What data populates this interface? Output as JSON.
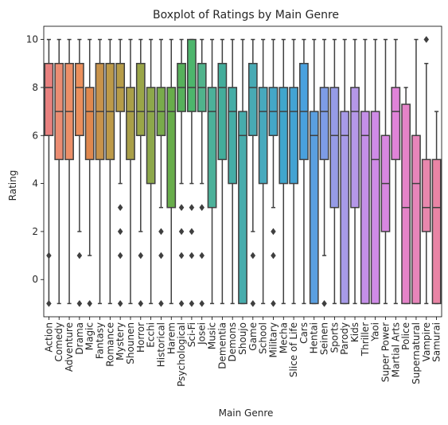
{
  "chart_data": {
    "type": "boxplot",
    "title": "Boxplot of Ratings by Main Genre",
    "xlabel": "Main Genre",
    "ylabel": "Rating",
    "ylim": [
      -1.55,
      10.55
    ],
    "yticks": [
      0,
      2,
      4,
      6,
      8,
      10
    ],
    "grid": false,
    "legend": "none",
    "categories": [
      "Action",
      "Comedy",
      "Adventure",
      "Drama",
      "Magic",
      "Fantasy",
      "Romance",
      "Mystery",
      "Shounen",
      "Horror",
      "Ecchi",
      "Historical",
      "Harem",
      "Psychological",
      "Sci-Fi",
      "Josei",
      "Music",
      "Dementia",
      "Demons",
      "Shoujo",
      "Game",
      "School",
      "Military",
      "Mecha",
      "Slice of Life",
      "Cars",
      "Hentai",
      "Seinen",
      "Sports",
      "Parody",
      "Kids",
      "Thriller",
      "Yaoi",
      "Super Power",
      "Martial Arts",
      "Police",
      "Supernatural",
      "Vampire",
      "Samurai"
    ],
    "colors": [
      "#e8817f",
      "#eb8d73",
      "#ec8f68",
      "#eb8f5c",
      "#e0884e",
      "#c8934b",
      "#bd9a49",
      "#b69c48",
      "#a99f48",
      "#9aa648",
      "#8da84b",
      "#79ab4b",
      "#68ad4b",
      "#56b05b",
      "#4db56c",
      "#50b38c",
      "#4cb19a",
      "#43ad9b",
      "#45ada6",
      "#47acac",
      "#48aab4",
      "#47a9bd",
      "#44a7c7",
      "#40a6cc",
      "#43a3d3",
      "#49a1de",
      "#5a9fe0",
      "#7d9ce6",
      "#969be6",
      "#a79ae8",
      "#b597e8",
      "#c48fe8",
      "#cf8be7",
      "#d887e0",
      "#e083d8",
      "#e483c8",
      "#e785ba",
      "#e887ad",
      "#e984a5"
    ],
    "stats": [
      {
        "min": -1,
        "q1": 6,
        "median": 8,
        "q3": 9,
        "max": 10,
        "outliers": [
          1,
          -1
        ]
      },
      {
        "min": -1,
        "q1": 5,
        "median": 7,
        "q3": 9,
        "max": 10,
        "outliers": []
      },
      {
        "min": -1,
        "q1": 5,
        "median": 7,
        "q3": 9,
        "max": 10,
        "outliers": []
      },
      {
        "min": 2,
        "q1": 6,
        "median": 8,
        "q3": 9,
        "max": 10,
        "outliers": [
          1,
          -1
        ]
      },
      {
        "min": 1,
        "q1": 5,
        "median": 7,
        "q3": 8,
        "max": 10,
        "outliers": [
          -1
        ]
      },
      {
        "min": -1,
        "q1": 5,
        "median": 7,
        "q3": 9,
        "max": 10,
        "outliers": []
      },
      {
        "min": -1,
        "q1": 5,
        "median": 7,
        "q3": 9,
        "max": 10,
        "outliers": []
      },
      {
        "min": 4,
        "q1": 7,
        "median": 8,
        "q3": 9,
        "max": 10,
        "outliers": [
          3,
          2,
          1,
          -1
        ]
      },
      {
        "min": -1,
        "q1": 5,
        "median": 7,
        "q3": 8,
        "max": 10,
        "outliers": []
      },
      {
        "min": 2,
        "q1": 6,
        "median": 7,
        "q3": 9,
        "max": 10,
        "outliers": [
          1,
          -1
        ]
      },
      {
        "min": -1,
        "q1": 4,
        "median": 7,
        "q3": 8,
        "max": 10,
        "outliers": []
      },
      {
        "min": 3,
        "q1": 6,
        "median": 7,
        "q3": 8,
        "max": 10,
        "outliers": [
          2,
          1,
          -1
        ]
      },
      {
        "min": -1,
        "q1": 3,
        "median": 7,
        "q3": 8,
        "max": 10,
        "outliers": []
      },
      {
        "min": 4,
        "q1": 7,
        "median": 8,
        "q3": 9,
        "max": 10,
        "outliers": [
          3,
          2,
          1,
          -1
        ]
      },
      {
        "min": 4,
        "q1": 7,
        "median": 8,
        "q3": 10,
        "max": 10,
        "outliers": [
          3,
          2,
          1,
          -1
        ]
      },
      {
        "min": 4,
        "q1": 7,
        "median": 8,
        "q3": 9,
        "max": 10,
        "outliers": [
          3,
          1,
          -1
        ]
      },
      {
        "min": -1,
        "q1": 3,
        "median": 7,
        "q3": 8,
        "max": 10,
        "outliers": []
      },
      {
        "min": -1,
        "q1": 5,
        "median": 8,
        "q3": 9,
        "max": 10,
        "outliers": []
      },
      {
        "min": -1,
        "q1": 4,
        "median": 7,
        "q3": 8,
        "max": 10,
        "outliers": []
      },
      {
        "min": -1,
        "q1": -1,
        "median": 6,
        "q3": 7,
        "max": 10,
        "outliers": []
      },
      {
        "min": 2,
        "q1": 6,
        "median": 8,
        "q3": 9,
        "max": 10,
        "outliers": [
          1,
          -1
        ]
      },
      {
        "min": -1,
        "q1": 4,
        "median": 7,
        "q3": 8,
        "max": 10,
        "outliers": []
      },
      {
        "min": 3,
        "q1": 6,
        "median": 7,
        "q3": 8,
        "max": 10,
        "outliers": [
          2,
          1,
          -1
        ]
      },
      {
        "min": -1,
        "q1": 4,
        "median": 7,
        "q3": 8,
        "max": 10,
        "outliers": []
      },
      {
        "min": -1,
        "q1": 4,
        "median": 7,
        "q3": 8,
        "max": 10,
        "outliers": []
      },
      {
        "min": -1,
        "q1": 5,
        "median": 7,
        "q3": 9,
        "max": 10,
        "outliers": []
      },
      {
        "min": -1,
        "q1": -1,
        "median": 6,
        "q3": 7,
        "max": 10,
        "outliers": []
      },
      {
        "min": 1,
        "q1": 5,
        "median": 7,
        "q3": 8,
        "max": 10,
        "outliers": [
          -1
        ]
      },
      {
        "min": -1,
        "q1": 3,
        "median": 6,
        "q3": 8,
        "max": 10,
        "outliers": []
      },
      {
        "min": -1,
        "q1": -1,
        "median": 6,
        "q3": 7,
        "max": 10,
        "outliers": []
      },
      {
        "min": -1,
        "q1": 3,
        "median": 7,
        "q3": 8,
        "max": 10,
        "outliers": []
      },
      {
        "min": -1,
        "q1": -1,
        "median": 6,
        "q3": 7,
        "max": 10,
        "outliers": []
      },
      {
        "min": -1,
        "q1": -1,
        "median": 5,
        "q3": 7,
        "max": 10,
        "outliers": []
      },
      {
        "min": -1,
        "q1": 2,
        "median": 4,
        "q3": 6,
        "max": 10,
        "outliers": []
      },
      {
        "min": -1,
        "q1": 5,
        "median": 7,
        "q3": 8,
        "max": 10,
        "outliers": []
      },
      {
        "min": -1,
        "q1": -1,
        "median": 3,
        "q3": 7.3,
        "max": 8,
        "outliers": []
      },
      {
        "min": -1,
        "q1": -1,
        "median": 4,
        "q3": 6,
        "max": 10,
        "outliers": []
      },
      {
        "min": -1,
        "q1": 2,
        "median": 3,
        "q3": 5,
        "max": 9,
        "outliers": [
          10
        ]
      },
      {
        "min": -1,
        "q1": -1,
        "median": 3,
        "q3": 5,
        "max": 7,
        "outliers": []
      }
    ]
  }
}
